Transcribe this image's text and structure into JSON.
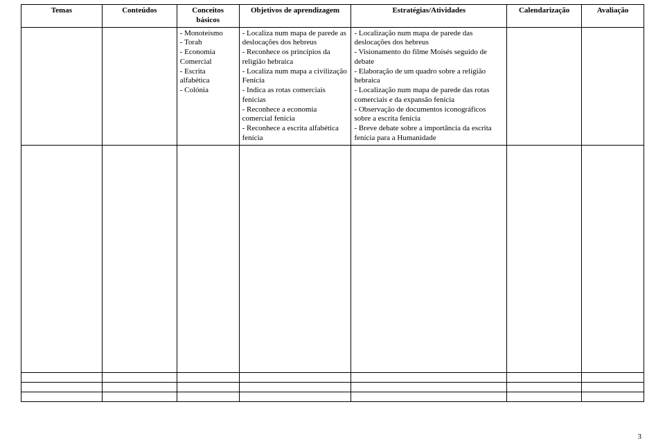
{
  "table": {
    "headers": {
      "temas": "Temas",
      "conteudos": "Conteúdos",
      "conceitos": "Conceitos básicos",
      "objetivos": "Objetivos de aprendizagem",
      "estrategias": "Estratégias/Atividades",
      "calendar": "Calendarização",
      "avaliacao": "Avaliação"
    },
    "row1": {
      "temas": "",
      "conteudos": "",
      "conceitos": "- Monoteísmo\n- Torah\n- Economia Comercial\n- Escrita alfabética\n- Colónia",
      "objetivos": "- Localiza num mapa de parede as deslocações dos hebreus\n- Reconhece os princípios da religião hebraica\n- Localiza num mapa a civilização Fenícia\n- Indica as rotas comerciais fenícias\n- Reconhece a economia comercial fenícia\n- Reconhece a escrita alfabética fenícia",
      "estrategias": "- Localização num mapa de parede das deslocações dos hebreus\n- Visionamento do filme Moisés seguido de debate\n- Elaboração de um quadro sobre a religião hebraica\n- Localização num mapa de parede das rotas comerciais e da expansão fenícia\n- Observação de documentos iconográficos sobre a escrita fenícia\n- Breve debate sobre a importância da escrita fenícia para a Humanidade",
      "calendar": "",
      "avaliacao": ""
    }
  },
  "page_number": "3",
  "style": {
    "font_family": "Times New Roman",
    "font_size_pt": 11,
    "border_color": "#000000",
    "background_color": "#ffffff",
    "text_color": "#000000"
  }
}
